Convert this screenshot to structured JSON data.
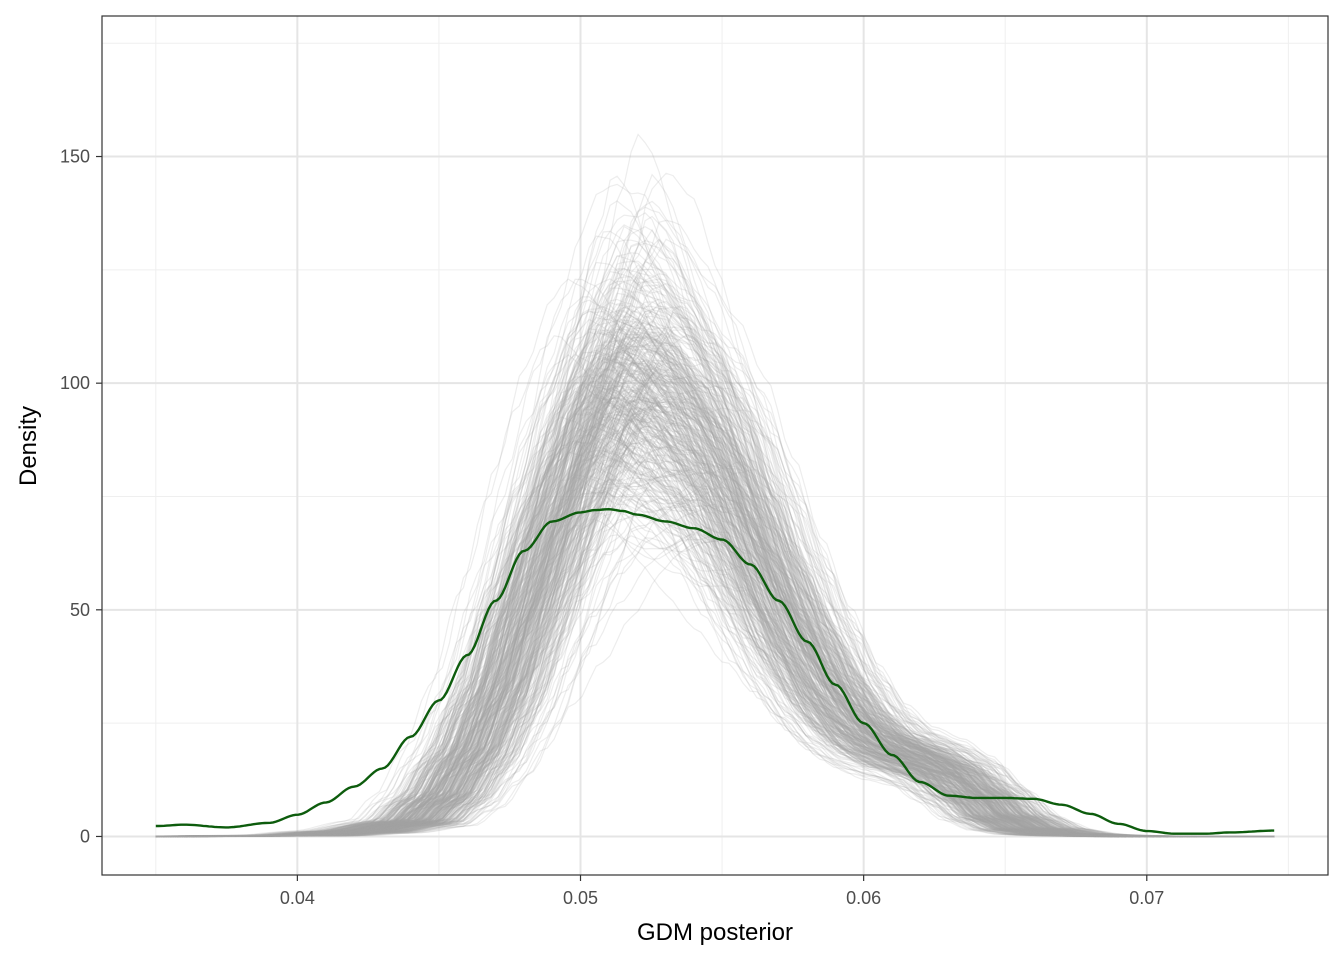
{
  "chart_data": {
    "type": "line",
    "title": "",
    "xlabel": "GDM posterior",
    "ylabel": "Density",
    "xlim": [
      0.0331,
      0.0764
    ],
    "ylim": [
      -8.5,
      181
    ],
    "x_ticks": [
      {
        "value": 0.04,
        "label": "0.04"
      },
      {
        "value": 0.05,
        "label": "0.05"
      },
      {
        "value": 0.06,
        "label": "0.06"
      },
      {
        "value": 0.07,
        "label": "0.07"
      }
    ],
    "y_ticks": [
      {
        "value": 0,
        "label": "0"
      },
      {
        "value": 50,
        "label": "50"
      },
      {
        "value": 100,
        "label": "100"
      },
      {
        "value": 150,
        "label": "150"
      }
    ],
    "x_minor_gridlines": [
      0.035,
      0.045,
      0.055,
      0.065,
      0.075
    ],
    "y_minor_gridlines": [
      25,
      75,
      125,
      175
    ],
    "grid": true,
    "legend": "none",
    "colors": {
      "observed": "#0d5c0d",
      "replicates": "#a6a6a6",
      "grid_major": "#e5e5e5",
      "grid_minor": "#efefef",
      "panel_border": "#333333"
    },
    "replicate_band": {
      "description_free": true,
      "count": 400,
      "x": [
        0.035,
        0.04,
        0.042,
        0.044,
        0.045,
        0.046,
        0.047,
        0.048,
        0.049,
        0.05,
        0.051,
        0.0515,
        0.052,
        0.053,
        0.054,
        0.055,
        0.056,
        0.057,
        0.058,
        0.059,
        0.06,
        0.061,
        0.062,
        0.063,
        0.064,
        0.065,
        0.066,
        0.067,
        0.068,
        0.07,
        0.0745
      ],
      "center": [
        0,
        0.2,
        1,
        3,
        8,
        17,
        30,
        48,
        67,
        85,
        98,
        102,
        101,
        96,
        90,
        80,
        66,
        52,
        40,
        30,
        23,
        19,
        17,
        14,
        9,
        4,
        1.5,
        0.5,
        0.2,
        0,
        0
      ],
      "spread": [
        0,
        0.2,
        1,
        2,
        4,
        6,
        8,
        10,
        13,
        16,
        20,
        24,
        24,
        22,
        18,
        14,
        11,
        9,
        7,
        6,
        5,
        5,
        5,
        5,
        4,
        3,
        2,
        1,
        0.5,
        0,
        0
      ]
    },
    "series": [
      {
        "x": [
          0.035,
          0.036,
          0.0375,
          0.039,
          0.04,
          0.041,
          0.042,
          0.043,
          0.044,
          0.045,
          0.046,
          0.047,
          0.048,
          0.049,
          0.05,
          0.0505,
          0.051,
          0.0515,
          0.052,
          0.053,
          0.054,
          0.055,
          0.056,
          0.057,
          0.058,
          0.059,
          0.06,
          0.061,
          0.062,
          0.063,
          0.064,
          0.065,
          0.066,
          0.067,
          0.068,
          0.069,
          0.07,
          0.071,
          0.072,
          0.073,
          0.0745
        ],
        "values": [
          2.3,
          2.6,
          2.0,
          3.0,
          4.8,
          7.5,
          11.0,
          15.0,
          22.0,
          30.0,
          40.0,
          52.0,
          63.0,
          69.5,
          71.5,
          72.0,
          72.2,
          71.8,
          71.0,
          69.5,
          68.0,
          65.5,
          60.0,
          52.0,
          43.0,
          33.5,
          25.0,
          18.0,
          12.0,
          9.0,
          8.5,
          8.5,
          8.3,
          7.0,
          5.0,
          2.8,
          1.2,
          0.6,
          0.6,
          0.9,
          1.3
        ]
      }
    ]
  }
}
